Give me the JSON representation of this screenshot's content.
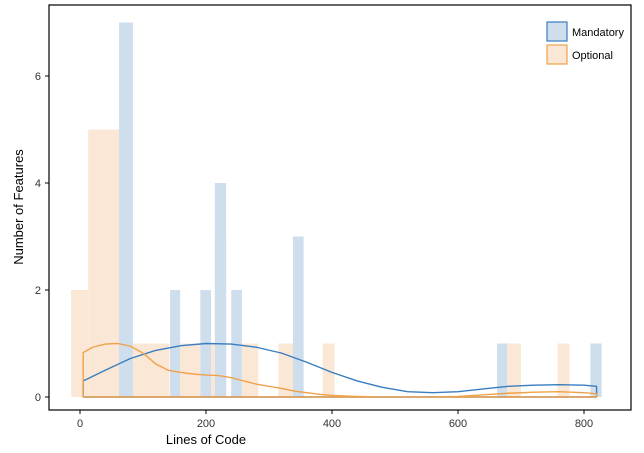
{
  "chart_data": {
    "type": "bar",
    "subtype": "overlaid histogram with density curves",
    "xlabel": "Lines of Code",
    "ylabel": "Number of Features",
    "xlim": [
      -40,
      840
    ],
    "ylim": [
      -0.1,
      7.1
    ],
    "x_ticks": [
      0,
      200,
      400,
      600,
      800
    ],
    "y_ticks": [
      0,
      2,
      4,
      6
    ],
    "bin_width": 16.5,
    "legend_position": "top-right",
    "grid": false,
    "series": [
      {
        "name": "Mandatory",
        "color": "#3a7dbf",
        "fill": "#cfdeed",
        "bins": [
          {
            "x0": 62,
            "x1": 84,
            "count": 7
          },
          {
            "x0": 143,
            "x1": 159,
            "count": 2
          },
          {
            "x0": 191,
            "x1": 208,
            "count": 2
          },
          {
            "x0": 214,
            "x1": 232,
            "count": 4
          },
          {
            "x0": 240,
            "x1": 257,
            "count": 2
          },
          {
            "x0": 338,
            "x1": 355,
            "count": 3
          },
          {
            "x0": 662,
            "x1": 678,
            "count": 1
          },
          {
            "x0": 810,
            "x1": 828,
            "count": 1
          }
        ],
        "density_curve": [
          [
            5,
            0.3
          ],
          [
            40,
            0.5
          ],
          [
            80,
            0.72
          ],
          [
            120,
            0.87
          ],
          [
            160,
            0.96
          ],
          [
            200,
            1.0
          ],
          [
            240,
            0.99
          ],
          [
            280,
            0.93
          ],
          [
            320,
            0.82
          ],
          [
            360,
            0.65
          ],
          [
            400,
            0.46
          ],
          [
            440,
            0.3
          ],
          [
            480,
            0.18
          ],
          [
            520,
            0.1
          ],
          [
            560,
            0.08
          ],
          [
            600,
            0.1
          ],
          [
            640,
            0.15
          ],
          [
            680,
            0.2
          ],
          [
            720,
            0.22
          ],
          [
            760,
            0.23
          ],
          [
            800,
            0.22
          ],
          [
            820,
            0.2
          ]
        ]
      },
      {
        "name": "Optional",
        "color": "#f0a24a",
        "fill": "#fbe7d6",
        "bins": [
          {
            "x0": -14,
            "x1": 13,
            "count": 2
          },
          {
            "x0": 13,
            "x1": 84,
            "count": 5
          },
          {
            "x0": 84,
            "x1": 142,
            "count": 1
          },
          {
            "x0": 159,
            "x1": 191,
            "count": 1
          },
          {
            "x0": 208,
            "x1": 214,
            "count": 1
          },
          {
            "x0": 214,
            "x1": 232,
            "count": 3
          },
          {
            "x0": 257,
            "x1": 283,
            "count": 1
          },
          {
            "x0": 315,
            "x1": 338,
            "count": 1
          },
          {
            "x0": 385,
            "x1": 404,
            "count": 1
          },
          {
            "x0": 678,
            "x1": 700,
            "count": 1
          },
          {
            "x0": 758,
            "x1": 777,
            "count": 1
          }
        ],
        "density_curve": [
          [
            5,
            0.83
          ],
          [
            20,
            0.93
          ],
          [
            40,
            0.99
          ],
          [
            60,
            1.0
          ],
          [
            80,
            0.95
          ],
          [
            100,
            0.82
          ],
          [
            120,
            0.62
          ],
          [
            140,
            0.5
          ],
          [
            160,
            0.46
          ],
          [
            180,
            0.43
          ],
          [
            200,
            0.41
          ],
          [
            220,
            0.4
          ],
          [
            240,
            0.36
          ],
          [
            260,
            0.3
          ],
          [
            280,
            0.24
          ],
          [
            300,
            0.2
          ],
          [
            320,
            0.16
          ],
          [
            340,
            0.11
          ],
          [
            360,
            0.08
          ],
          [
            380,
            0.05
          ],
          [
            400,
            0.03
          ],
          [
            440,
            0.01
          ],
          [
            480,
            0.0
          ],
          [
            520,
            0.0
          ],
          [
            560,
            0.0
          ],
          [
            600,
            0.01
          ],
          [
            640,
            0.04
          ],
          [
            680,
            0.07
          ],
          [
            720,
            0.09
          ],
          [
            760,
            0.1
          ],
          [
            800,
            0.08
          ],
          [
            820,
            0.06
          ]
        ]
      }
    ]
  }
}
